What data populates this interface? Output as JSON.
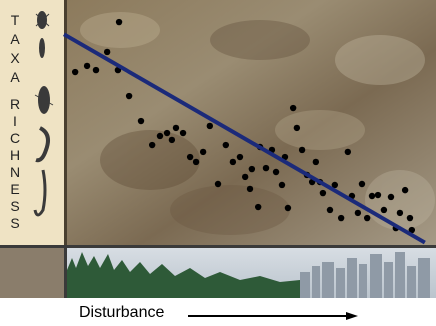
{
  "chart_data": {
    "type": "scatter",
    "y_label_lines": [
      "TAXA",
      "RICHNESS"
    ],
    "x_label": "Disturbance",
    "xlim": [
      0,
      100
    ],
    "ylim": [
      0,
      100
    ],
    "color": "#000000",
    "x": [
      14.8,
      3.0,
      6.2,
      8.6,
      11.6,
      14.5,
      17.5,
      20.7,
      23.7,
      25.8,
      27.7,
      29.0,
      30.1,
      32.0,
      33.9,
      35.5,
      37.4,
      39.2,
      41.4,
      43.5,
      45.4,
      47.3,
      48.7,
      50.0,
      50.5,
      52.2,
      52.7,
      54.3,
      55.9,
      57.0,
      58.6,
      59.4,
      60.2,
      61.6,
      62.6,
      64.0,
      65.3,
      66.7,
      67.7,
      68.8,
      69.6,
      71.5,
      72.8,
      74.5,
      76.3,
      77.4,
      79.0,
      80.1,
      81.5,
      82.8,
      84.4,
      86.0,
      87.9,
      89.2,
      90.3,
      91.7,
      93.0,
      93.5
    ],
    "values": [
      91.0,
      70.6,
      73.1,
      71.4,
      78.8,
      71.4,
      60.8,
      50.6,
      40.8,
      44.5,
      45.7,
      42.9,
      47.8,
      45.7,
      35.9,
      33.9,
      38.0,
      48.6,
      24.9,
      40.8,
      33.9,
      35.9,
      27.8,
      22.9,
      31.0,
      15.5,
      40.0,
      31.4,
      38.8,
      29.8,
      24.5,
      35.9,
      15.1,
      55.9,
      47.8,
      38.8,
      28.6,
      25.7,
      33.9,
      25.7,
      21.2,
      14.3,
      24.5,
      11.0,
      38.0,
      20.0,
      13.1,
      24.9,
      11.0,
      20.0,
      20.4,
      14.3,
      19.6,
      6.9,
      13.1,
      22.4,
      11.0,
      6.1
    ],
    "trend_line": {
      "x": [
        0,
        97
      ],
      "y": [
        86,
        1
      ],
      "color": "#1b2a7a"
    }
  }
}
